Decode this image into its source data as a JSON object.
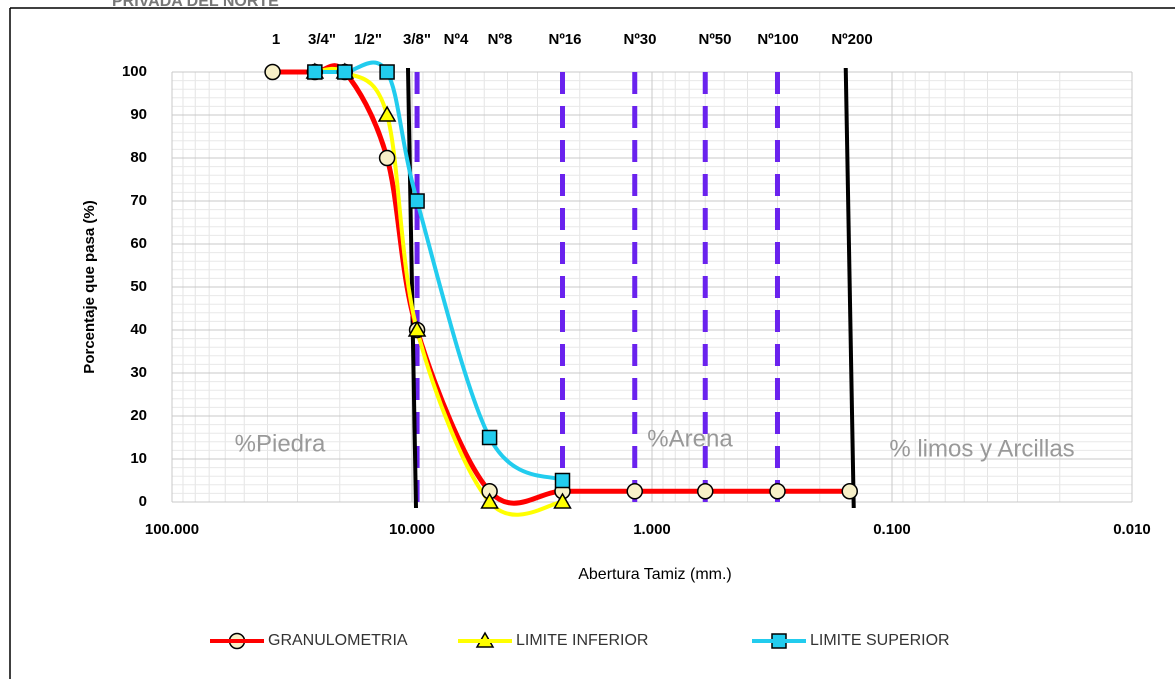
{
  "header": {
    "text": "PRIVADA DEL NORTE"
  },
  "chart_data": {
    "type": "line",
    "x_label": "Abertura Tamiz (mm.)",
    "y_label": "Porcentaje que pasa (%)",
    "xscale": "log",
    "xreversed": true,
    "grid": true,
    "legend": "bottom",
    "xlim": [
      100,
      0.01
    ],
    "xticks": [
      {
        "value": 100,
        "label": "100.000"
      },
      {
        "value": 10,
        "label": "10.000"
      },
      {
        "value": 1,
        "label": "1.000"
      },
      {
        "value": 0.1,
        "label": "0.100"
      },
      {
        "value": 0.01,
        "label": "0.010"
      }
    ],
    "ylim": [
      0,
      100
    ],
    "yticks": [
      0,
      10,
      20,
      30,
      40,
      50,
      60,
      70,
      80,
      90,
      100
    ],
    "top_labels": [
      "1",
      "3/4\"",
      "1/2\"",
      "3/8\"",
      "Nº4",
      "Nº8",
      "Nº16",
      "Nº30",
      "Nº50",
      "Nº100",
      "Nº200"
    ],
    "annotations": [
      "%Piedra",
      "%Arena",
      "% limos y Arcillas"
    ],
    "solid_lines": [
      10,
      0.15
    ],
    "dashed_lines": [
      9.525,
      2.36,
      1.18,
      0.6,
      0.3
    ],
    "series": [
      {
        "name": "GRANULOMETRIA",
        "color": "#ff0000",
        "marker": "circle",
        "x": [
          38.1,
          25.4,
          19.05,
          12.7,
          9.525,
          4.75,
          2.36,
          1.18,
          0.6,
          0.3,
          0.15
        ],
        "values": [
          100,
          100,
          100,
          80,
          40,
          2.5,
          2.5,
          2.5,
          2.5,
          2.5,
          2.5
        ]
      },
      {
        "name": "LIMITE INFERIOR",
        "color": "#ffff00",
        "marker": "triangle",
        "x": [
          25.4,
          19.05,
          12.7,
          9.525,
          4.75,
          2.36
        ],
        "values": [
          100,
          100,
          90,
          40,
          0,
          0
        ]
      },
      {
        "name": "LIMITE SUPERIOR",
        "color": "#22ccee",
        "marker": "square",
        "x": [
          25.4,
          19.05,
          12.7,
          9.525,
          4.75,
          2.36
        ],
        "values": [
          100,
          100,
          100,
          70,
          15,
          5
        ]
      }
    ]
  }
}
